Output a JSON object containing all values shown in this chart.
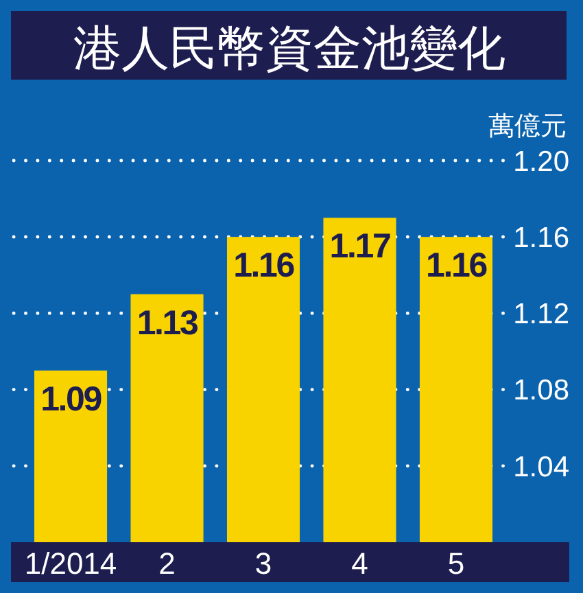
{
  "chart_data": {
    "type": "bar",
    "title": "港人民幣資金池變化",
    "ylabel": "萬億元",
    "categories": [
      "1/2014",
      "2",
      "3",
      "4",
      "5"
    ],
    "values": [
      1.09,
      1.13,
      1.16,
      1.17,
      1.16
    ],
    "color": "#f8d300",
    "ylim": [
      1.0,
      1.2
    ],
    "yticks": [
      1.04,
      1.08,
      1.12,
      1.16,
      {
        "value": 1.2,
        "label": "1.20"
      }
    ],
    "grid": "y",
    "data_labels": true
  }
}
